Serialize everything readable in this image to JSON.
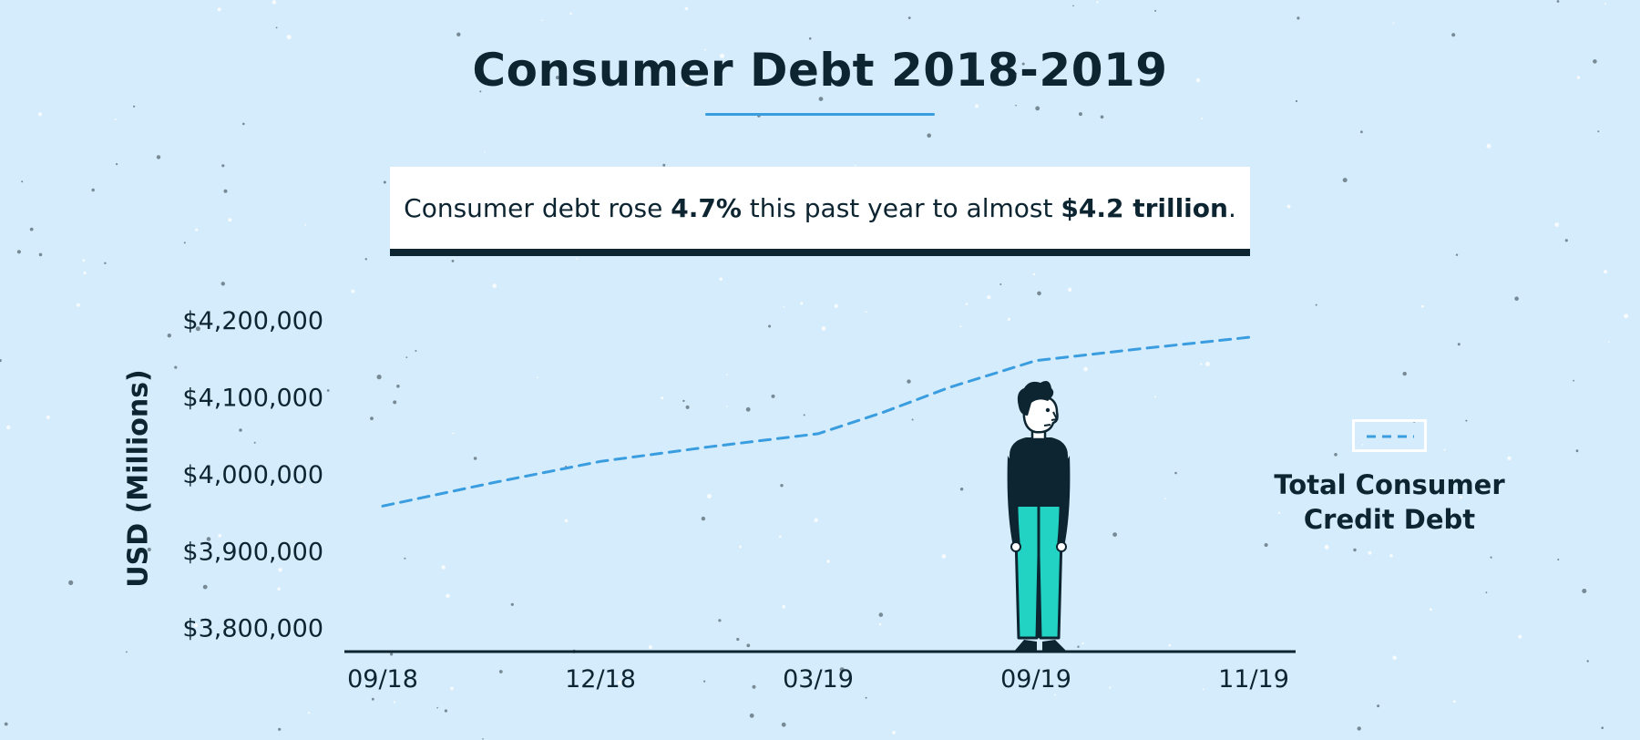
{
  "title": "Consumer Debt 2018-2019",
  "callout": {
    "prefix": "Consumer debt rose ",
    "pct": "4.7%",
    "middle": " this past year to almost ",
    "amount": "$4.2 trillion",
    "suffix": "."
  },
  "colors": {
    "background": "#d4ecfb",
    "ink": "#0d2431",
    "line": "#3a9de0",
    "pants": "#22d3c4"
  },
  "chart_data": {
    "type": "line",
    "ylabel": "USD (Millions)",
    "ylim": [
      3770000,
      4200000
    ],
    "yticks": [
      {
        "value": 4200000,
        "label": "$4,200,000"
      },
      {
        "value": 4100000,
        "label": "$4,100,000"
      },
      {
        "value": 4000000,
        "label": "$4,000,000"
      },
      {
        "value": 3900000,
        "label": "$3,900,000"
      },
      {
        "value": 3800000,
        "label": "$3,800,000"
      }
    ],
    "categories": [
      "09/18",
      "12/18",
      "03/19",
      "09/19",
      "11/19"
    ],
    "series": [
      {
        "name": "Total Consumer Credit Debt",
        "style": "dashed",
        "x": [
          0,
          0.5,
          1,
          1.5,
          2,
          2.3,
          2.6,
          3,
          3.5,
          4
        ],
        "values": [
          3958000,
          3988000,
          4016000,
          4035000,
          4052000,
          4080000,
          4112000,
          4147000,
          4163000,
          4178000
        ]
      }
    ],
    "legend": {
      "position": "right",
      "lines": [
        "Total Consumer",
        "Credit Debt"
      ]
    },
    "grid": false
  }
}
